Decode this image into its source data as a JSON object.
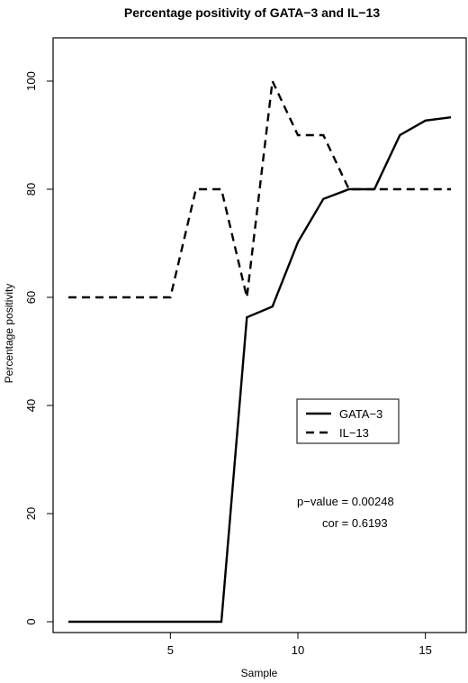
{
  "chart_data": {
    "type": "line",
    "title": "Percentage positivity of GATA−3 and IL−13",
    "xlabel": "Sample",
    "ylabel": "Percentage positivity",
    "xlim": [
      0.4,
      16.6
    ],
    "ylim": [
      -2,
      108
    ],
    "xticks": [
      5,
      10,
      15
    ],
    "yticks": [
      0,
      20,
      40,
      60,
      80,
      100
    ],
    "grid": false,
    "legend_position": "center-right",
    "series": [
      {
        "name": "GATA−3",
        "line_style": "solid",
        "x": [
          1,
          2,
          3,
          4,
          5,
          6,
          7,
          8,
          9,
          10,
          11,
          12,
          13,
          14,
          15,
          16
        ],
        "values": [
          0,
          0,
          0,
          0,
          0,
          0,
          0,
          56.3,
          58.3,
          70.2,
          78.2,
          80,
          80,
          90,
          92.7,
          93.3
        ]
      },
      {
        "name": "IL−13",
        "line_style": "dashed",
        "x": [
          1,
          2,
          3,
          4,
          5,
          6,
          7,
          8,
          9,
          10,
          11,
          12,
          13,
          14,
          15,
          16
        ],
        "values": [
          60,
          60,
          60,
          60,
          60,
          80,
          80,
          60,
          100,
          90,
          90,
          80,
          80,
          80,
          80,
          80
        ]
      }
    ],
    "annotations": [
      "p−value = 0.00248",
      "cor = 0.6193"
    ]
  }
}
